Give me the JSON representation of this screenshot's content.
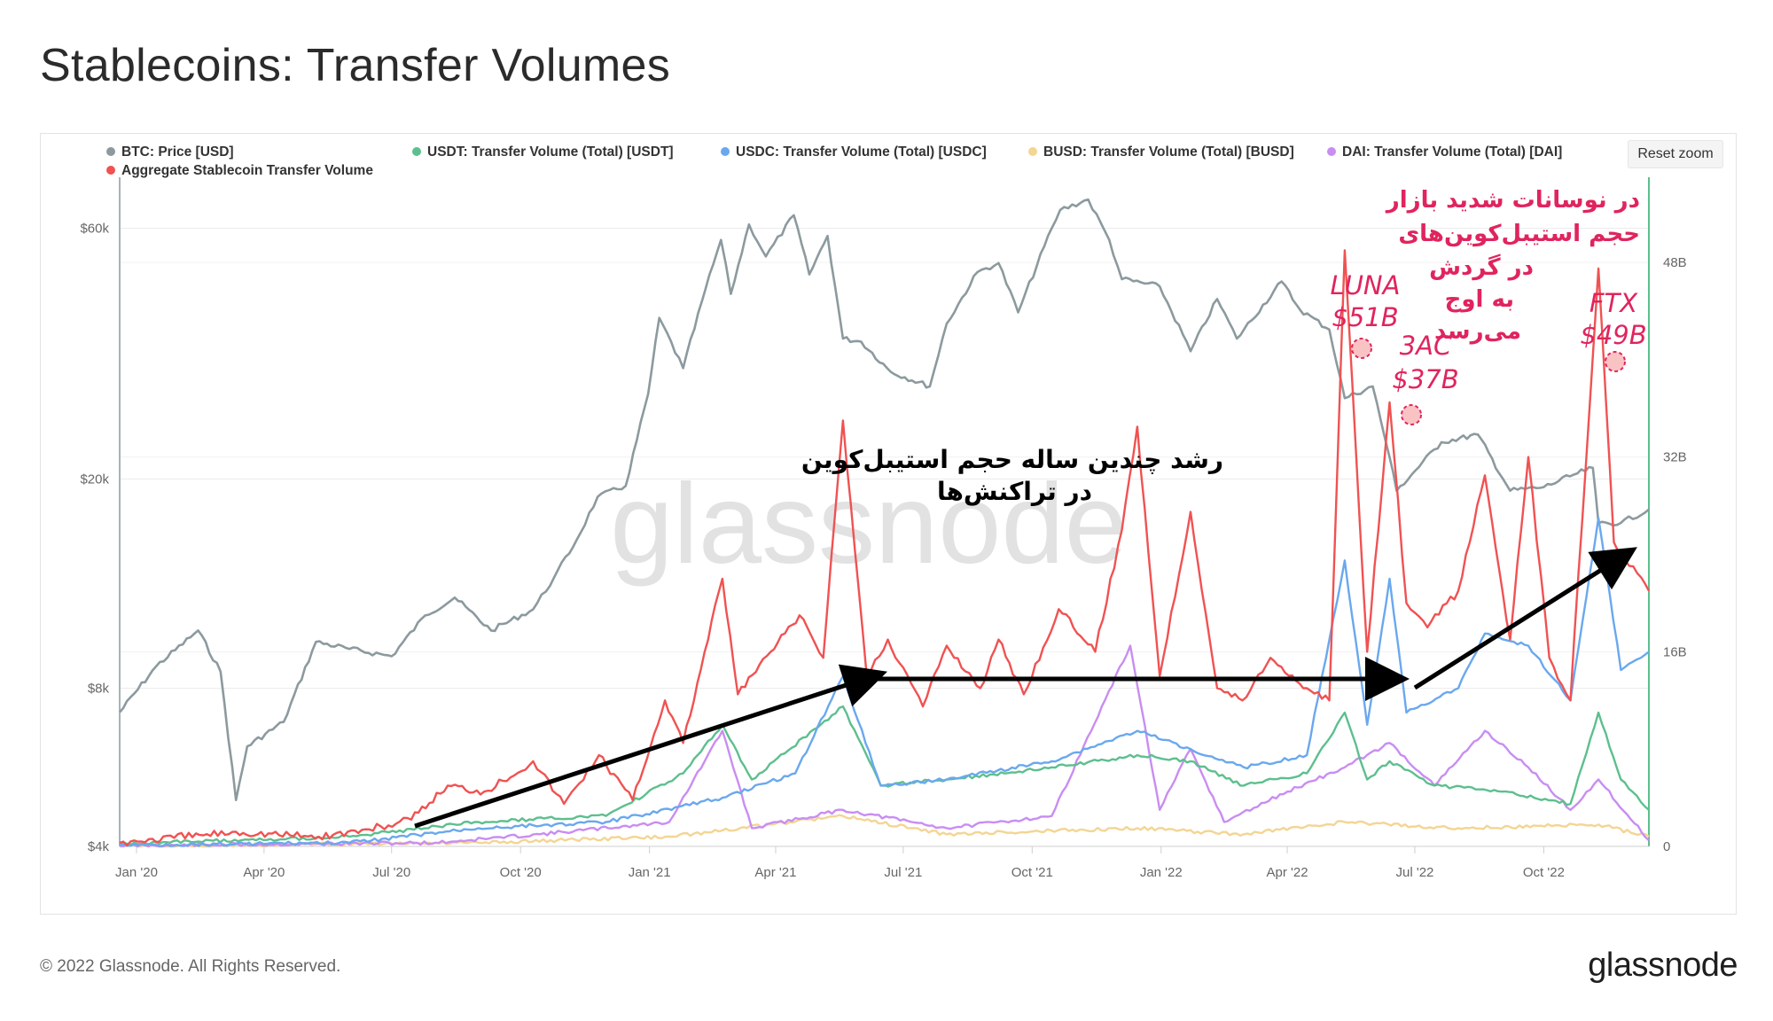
{
  "title": "Stablecoins: Transfer Volumes",
  "reset_zoom": "Reset zoom",
  "footer": "© 2022 Glassnode. All Rights Reserved.",
  "brand": "glassnode",
  "watermark": "glassnode",
  "legend": [
    {
      "label": "BTC: Price [USD]",
      "color": "#8c9a9e"
    },
    {
      "label": "USDT: Transfer Volume (Total) [USDT]",
      "color": "#5dbf8e"
    },
    {
      "label": "USDC: Transfer Volume (Total) [USDC]",
      "color": "#6aa8ee"
    },
    {
      "label": "BUSD: Transfer Volume (Total) [BUSD]",
      "color": "#f3d594"
    },
    {
      "label": "DAI: Transfer Volume (Total) [DAI]",
      "color": "#c98df2"
    },
    {
      "label": "Aggregate Stablecoin Transfer Volume",
      "color": "#f05252"
    }
  ],
  "annotations": {
    "growth_line1": "رشد چندین ساله حجم استیبل‌کوین",
    "growth_line2": "در تراکنش‌ها",
    "peak_line1": "در نوسانات شدید بازار",
    "peak_line2": "حجم استیبل‌کوین‌های",
    "peak_line3": "در گردش",
    "peak_line4": "به اوج",
    "peak_line5": "می‌رسد",
    "luna_name": "LUNA",
    "luna_value": "$51B",
    "tac_name": "3AC",
    "tac_value": "$37B",
    "ftx_name": "FTX",
    "ftx_value": "$49B"
  },
  "chart_data": {
    "type": "line",
    "x_ticks": [
      "Jan '20",
      "Apr '20",
      "Jul '20",
      "Oct '20",
      "Jan '21",
      "Apr '21",
      "Jul '21",
      "Oct '21",
      "Jan '22",
      "Apr '22",
      "Jul '22",
      "Oct '22"
    ],
    "y_left_ticks": [
      "$60k",
      "$20k",
      "$8k",
      "$4k"
    ],
    "y_right_ticks": [
      "48B",
      "32B",
      "16B",
      "0"
    ],
    "y_left_scale": "log",
    "y_left_range": [
      4000,
      75000
    ],
    "y_right_range": [
      0,
      55
    ],
    "x_range": [
      "2019-12-20",
      "2022-12-15"
    ],
    "grid": true,
    "legend_position": "top",
    "series": [
      {
        "name": "BTC: Price [USD]",
        "axis": "left",
        "color": "#8c9a9e",
        "points": [
          [
            "2019-12-20",
            7200
          ],
          [
            "2020-01-15",
            8800
          ],
          [
            "2020-02-14",
            10300
          ],
          [
            "2020-03-01",
            8600
          ],
          [
            "2020-03-12",
            4900
          ],
          [
            "2020-03-20",
            6200
          ],
          [
            "2020-04-15",
            6900
          ],
          [
            "2020-05-08",
            9800
          ],
          [
            "2020-06-01",
            9500
          ],
          [
            "2020-07-01",
            9200
          ],
          [
            "2020-07-25",
            11000
          ],
          [
            "2020-08-15",
            11900
          ],
          [
            "2020-09-10",
            10300
          ],
          [
            "2020-10-10",
            11300
          ],
          [
            "2020-10-25",
            13000
          ],
          [
            "2020-11-10",
            15300
          ],
          [
            "2020-11-25",
            18500
          ],
          [
            "2020-12-15",
            19400
          ],
          [
            "2020-12-31",
            29000
          ],
          [
            "2021-01-08",
            40500
          ],
          [
            "2021-01-25",
            32500
          ],
          [
            "2021-02-10",
            46000
          ],
          [
            "2021-02-21",
            57000
          ],
          [
            "2021-02-28",
            45000
          ],
          [
            "2021-03-13",
            61000
          ],
          [
            "2021-03-25",
            53000
          ],
          [
            "2021-04-14",
            63500
          ],
          [
            "2021-04-25",
            49000
          ],
          [
            "2021-05-08",
            58000
          ],
          [
            "2021-05-19",
            37000
          ],
          [
            "2021-06-01",
            36500
          ],
          [
            "2021-06-22",
            32000
          ],
          [
            "2021-07-20",
            30000
          ],
          [
            "2021-08-01",
            39500
          ],
          [
            "2021-08-23",
            49500
          ],
          [
            "2021-09-07",
            51500
          ],
          [
            "2021-09-21",
            41500
          ],
          [
            "2021-10-15",
            60000
          ],
          [
            "2021-10-21",
            65000
          ],
          [
            "2021-11-10",
            68000
          ],
          [
            "2021-11-25",
            57000
          ],
          [
            "2021-12-04",
            48000
          ],
          [
            "2021-12-31",
            46500
          ],
          [
            "2022-01-22",
            35000
          ],
          [
            "2022-02-10",
            44000
          ],
          [
            "2022-02-24",
            37000
          ],
          [
            "2022-03-28",
            47500
          ],
          [
            "2022-04-10",
            42000
          ],
          [
            "2022-05-01",
            38500
          ],
          [
            "2022-05-12",
            28500
          ],
          [
            "2022-06-01",
            30000
          ],
          [
            "2022-06-13",
            22000
          ],
          [
            "2022-06-18",
            19000
          ],
          [
            "2022-07-20",
            23500
          ],
          [
            "2022-08-15",
            24300
          ],
          [
            "2022-09-07",
            19000
          ],
          [
            "2022-10-01",
            19300
          ],
          [
            "2022-10-25",
            20500
          ],
          [
            "2022-11-05",
            21000
          ],
          [
            "2022-11-09",
            16500
          ],
          [
            "2022-11-25",
            16500
          ],
          [
            "2022-12-15",
            17500
          ]
        ]
      },
      {
        "name": "Aggregate Stablecoin Transfer Volume",
        "axis": "right",
        "color": "#f05252",
        "points": [
          [
            "2019-12-20",
            0.3
          ],
          [
            "2020-03-12",
            1.2
          ],
          [
            "2020-05-10",
            0.8
          ],
          [
            "2020-06-15",
            1.4
          ],
          [
            "2020-07-15",
            2.2
          ],
          [
            "2020-08-10",
            5.0
          ],
          [
            "2020-09-05",
            4.5
          ],
          [
            "2020-10-10",
            7.0
          ],
          [
            "2020-11-01",
            3.5
          ],
          [
            "2020-11-26",
            7.5
          ],
          [
            "2020-12-20",
            3.8
          ],
          [
            "2021-01-12",
            12.0
          ],
          [
            "2021-01-25",
            8.5
          ],
          [
            "2021-02-22",
            22.0
          ],
          [
            "2021-03-05",
            12.5
          ],
          [
            "2021-04-18",
            19.0
          ],
          [
            "2021-05-05",
            15.5
          ],
          [
            "2021-05-19",
            35.0
          ],
          [
            "2021-06-05",
            14.0
          ],
          [
            "2021-06-20",
            17.0
          ],
          [
            "2021-07-15",
            11.5
          ],
          [
            "2021-08-01",
            16.5
          ],
          [
            "2021-08-25",
            13.0
          ],
          [
            "2021-09-07",
            17.0
          ],
          [
            "2021-09-25",
            12.5
          ],
          [
            "2021-10-20",
            19.5
          ],
          [
            "2021-11-15",
            16.0
          ],
          [
            "2021-12-04",
            26.0
          ],
          [
            "2021-12-15",
            34.5
          ],
          [
            "2021-12-31",
            14.0
          ],
          [
            "2022-01-22",
            27.5
          ],
          [
            "2022-02-10",
            13.0
          ],
          [
            "2022-02-28",
            12.0
          ],
          [
            "2022-03-20",
            15.5
          ],
          [
            "2022-04-15",
            13.0
          ],
          [
            "2022-05-01",
            12.0
          ],
          [
            "2022-05-12",
            49.0
          ],
          [
            "2022-05-28",
            16.0
          ],
          [
            "2022-06-13",
            36.5
          ],
          [
            "2022-06-25",
            20.0
          ],
          [
            "2022-07-10",
            18.0
          ],
          [
            "2022-08-01",
            21.0
          ],
          [
            "2022-08-20",
            30.5
          ],
          [
            "2022-09-07",
            17.0
          ],
          [
            "2022-09-20",
            32.0
          ],
          [
            "2022-10-05",
            15.5
          ],
          [
            "2022-10-20",
            12.0
          ],
          [
            "2022-11-09",
            47.5
          ],
          [
            "2022-11-20",
            25.0
          ],
          [
            "2022-12-15",
            21.0
          ]
        ]
      },
      {
        "name": "USDC: Transfer Volume (Total) [USDC]",
        "axis": "right",
        "color": "#6aa8ee",
        "points": [
          [
            "2019-12-20",
            0.1
          ],
          [
            "2020-06-01",
            0.3
          ],
          [
            "2020-09-01",
            1.5
          ],
          [
            "2020-12-01",
            2.0
          ],
          [
            "2021-02-22",
            4.0
          ],
          [
            "2021-04-15",
            6.0
          ],
          [
            "2021-05-19",
            14.0
          ],
          [
            "2021-06-15",
            5.0
          ],
          [
            "2021-08-01",
            5.5
          ],
          [
            "2021-10-15",
            7.0
          ],
          [
            "2021-12-15",
            9.5
          ],
          [
            "2022-01-22",
            8.0
          ],
          [
            "2022-03-01",
            6.5
          ],
          [
            "2022-04-15",
            7.5
          ],
          [
            "2022-05-12",
            23.5
          ],
          [
            "2022-05-28",
            10.0
          ],
          [
            "2022-06-13",
            22.0
          ],
          [
            "2022-06-25",
            11.0
          ],
          [
            "2022-08-01",
            13.0
          ],
          [
            "2022-08-20",
            17.5
          ],
          [
            "2022-09-20",
            16.5
          ],
          [
            "2022-10-20",
            12.0
          ],
          [
            "2022-11-09",
            27.0
          ],
          [
            "2022-11-25",
            14.5
          ],
          [
            "2022-12-15",
            16.0
          ]
        ]
      },
      {
        "name": "USDT: Transfer Volume (Total) [USDT]",
        "axis": "right",
        "color": "#5dbf8e",
        "points": [
          [
            "2019-12-20",
            0.2
          ],
          [
            "2020-06-01",
            0.8
          ],
          [
            "2020-09-01",
            2.0
          ],
          [
            "2020-12-01",
            2.5
          ],
          [
            "2021-01-25",
            6.0
          ],
          [
            "2021-02-22",
            10.0
          ],
          [
            "2021-03-15",
            5.5
          ],
          [
            "2021-05-19",
            11.5
          ],
          [
            "2021-06-15",
            5.0
          ],
          [
            "2021-08-01",
            5.5
          ],
          [
            "2021-10-15",
            6.5
          ],
          [
            "2021-12-15",
            7.5
          ],
          [
            "2022-01-22",
            7.0
          ],
          [
            "2022-03-01",
            5.0
          ],
          [
            "2022-04-15",
            6.0
          ],
          [
            "2022-05-12",
            11.0
          ],
          [
            "2022-05-28",
            5.5
          ],
          [
            "2022-06-13",
            7.0
          ],
          [
            "2022-07-15",
            5.0
          ],
          [
            "2022-09-01",
            4.5
          ],
          [
            "2022-10-20",
            3.5
          ],
          [
            "2022-11-09",
            11.0
          ],
          [
            "2022-11-25",
            5.5
          ],
          [
            "2022-12-15",
            3.0
          ]
        ]
      },
      {
        "name": "DAI: Transfer Volume (Total) [DAI]",
        "axis": "right",
        "color": "#c98df2",
        "points": [
          [
            "2019-12-20",
            0.05
          ],
          [
            "2020-08-01",
            0.3
          ],
          [
            "2020-10-15",
            1.0
          ],
          [
            "2021-01-15",
            2.0
          ],
          [
            "2021-02-22",
            9.5
          ],
          [
            "2021-03-15",
            1.5
          ],
          [
            "2021-05-19",
            3.0
          ],
          [
            "2021-08-01",
            1.5
          ],
          [
            "2021-10-15",
            2.5
          ],
          [
            "2021-12-10",
            16.5
          ],
          [
            "2021-12-31",
            3.0
          ],
          [
            "2022-01-22",
            8.0
          ],
          [
            "2022-02-15",
            2.0
          ],
          [
            "2022-04-01",
            4.5
          ],
          [
            "2022-05-12",
            6.5
          ],
          [
            "2022-06-13",
            8.5
          ],
          [
            "2022-07-15",
            5.0
          ],
          [
            "2022-08-20",
            9.5
          ],
          [
            "2022-09-20",
            6.5
          ],
          [
            "2022-10-20",
            3.0
          ],
          [
            "2022-11-09",
            5.5
          ],
          [
            "2022-12-15",
            0.5
          ]
        ]
      },
      {
        "name": "BUSD: Transfer Volume (Total) [BUSD]",
        "axis": "right",
        "color": "#f3d594",
        "points": [
          [
            "2019-12-20",
            0.0
          ],
          [
            "2020-09-01",
            0.3
          ],
          [
            "2021-01-15",
            0.8
          ],
          [
            "2021-05-19",
            2.5
          ],
          [
            "2021-08-01",
            1.0
          ],
          [
            "2021-12-15",
            1.5
          ],
          [
            "2022-03-01",
            1.0
          ],
          [
            "2022-05-12",
            2.0
          ],
          [
            "2022-08-01",
            1.5
          ],
          [
            "2022-11-09",
            1.8
          ],
          [
            "2022-12-15",
            0.8
          ]
        ]
      }
    ]
  }
}
